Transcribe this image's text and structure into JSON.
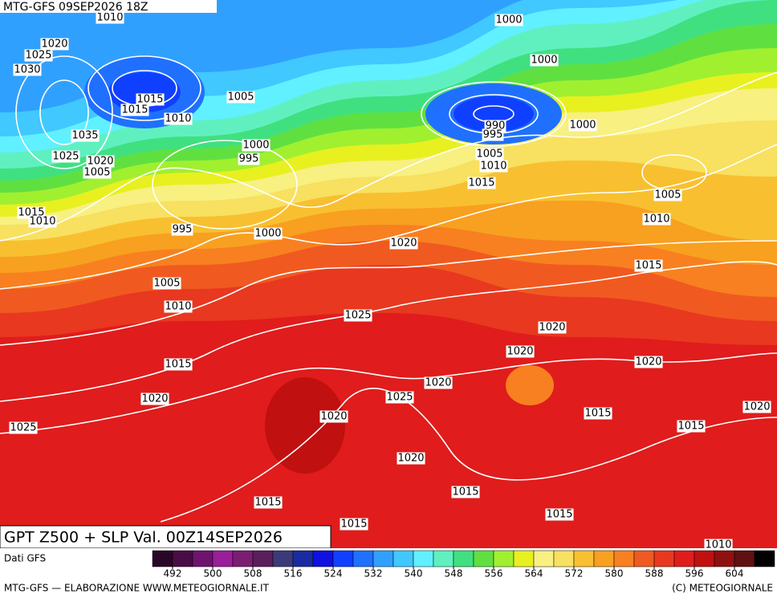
{
  "header": {
    "run": "MTG-GFS 09SEP2026 18Z"
  },
  "title": "GPT Z500 + SLP Val. 00Z14SEP2026",
  "source": "Dati GFS",
  "footer": {
    "left": "MTG-GFS — ELABORAZIONE WWW.METEOGIORNALE.IT",
    "right": "(C) METEOGIORNALE"
  },
  "isobar_labels": [
    1010,
    1020,
    1025,
    1030,
    1015,
    1015,
    1010,
    1005,
    1035,
    1025,
    1020,
    1005,
    1000,
    995,
    1015,
    1010,
    995,
    1000,
    1005,
    1010,
    1015,
    1020,
    1025,
    1000,
    1000,
    990,
    995,
    1000,
    1005,
    1010,
    1015,
    1005,
    1010,
    1015,
    1020,
    1025,
    1020,
    1020,
    1020,
    1020,
    1025,
    1020,
    1015,
    1015,
    1020,
    1020,
    1015,
    1015,
    1015,
    1015,
    1010
  ],
  "colorbar": {
    "lim": [
      488,
      612
    ],
    "ticks": [
      492,
      500,
      508,
      516,
      524,
      532,
      540,
      548,
      556,
      564,
      572,
      580,
      588,
      596,
      604
    ],
    "colors": [
      "#2a0626",
      "#4a0c44",
      "#6e1470",
      "#9a1e9a",
      "#7a1e72",
      "#5a1e5a",
      "#3a3a7a",
      "#1a2aa0",
      "#1010e0",
      "#1040ff",
      "#2070ff",
      "#30a0ff",
      "#40c8ff",
      "#60f0ff",
      "#60f0c0",
      "#40e080",
      "#60e040",
      "#a0f030",
      "#e8f020",
      "#f8f080",
      "#f8e060",
      "#f8c030",
      "#f8a020",
      "#f88020",
      "#f05a20",
      "#e83820",
      "#e01c1c",
      "#c01010",
      "#901010",
      "#601010",
      "#000000"
    ]
  }
}
